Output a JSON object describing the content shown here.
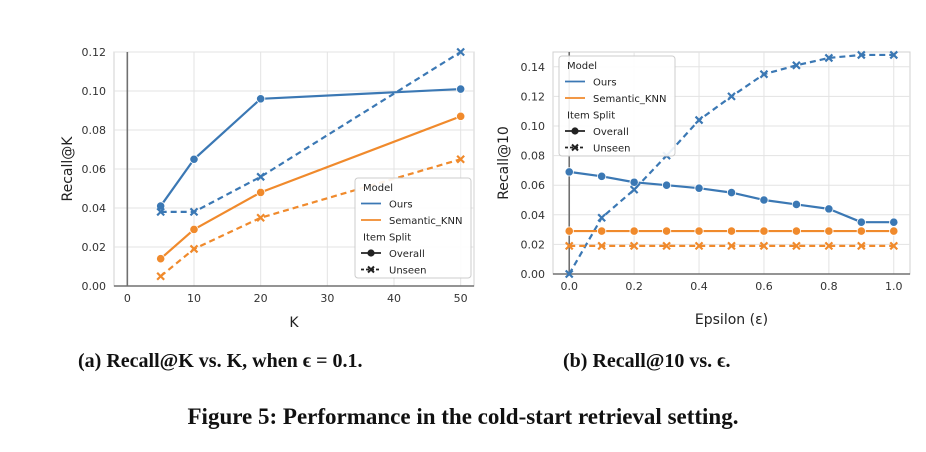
{
  "chart_data": [
    {
      "type": "line",
      "id": "a",
      "xlabel": "K",
      "ylabel": "Recall@K",
      "xlim": [
        -2,
        52
      ],
      "ylim": [
        0,
        0.12
      ],
      "xticks": [
        0,
        10,
        20,
        30,
        40,
        50
      ],
      "yticks": [
        0.0,
        0.02,
        0.04,
        0.06,
        0.08,
        0.1,
        0.12
      ],
      "ytick_labels": [
        "0.00",
        "0.02",
        "0.04",
        "0.06",
        "0.08",
        "0.10",
        "0.12"
      ],
      "xtick_labels": [
        "0",
        "10",
        "20",
        "30",
        "40",
        "50"
      ],
      "legend_position": "lower-right",
      "series": [
        {
          "name": "Ours / Overall",
          "model": "Ours",
          "split": "Overall",
          "color": "#3b78b4",
          "marker": "circle",
          "dash": false,
          "x": [
            5,
            10,
            20,
            50
          ],
          "values": [
            0.041,
            0.065,
            0.096,
            0.101
          ]
        },
        {
          "name": "Ours / Unseen",
          "model": "Ours",
          "split": "Unseen",
          "color": "#3b78b4",
          "marker": "cross",
          "dash": true,
          "x": [
            5,
            10,
            20,
            50
          ],
          "values": [
            0.038,
            0.038,
            0.056,
            0.12
          ]
        },
        {
          "name": "Semantic_KNN / Overall",
          "model": "Semantic_KNN",
          "split": "Overall",
          "color": "#f08a2c",
          "marker": "circle",
          "dash": false,
          "x": [
            5,
            10,
            20,
            50
          ],
          "values": [
            0.014,
            0.029,
            0.048,
            0.087
          ]
        },
        {
          "name": "Semantic_KNN / Unseen",
          "model": "Semantic_KNN",
          "split": "Unseen",
          "color": "#f08a2c",
          "marker": "cross",
          "dash": true,
          "x": [
            5,
            10,
            20,
            50
          ],
          "values": [
            0.005,
            0.019,
            0.035,
            0.065
          ]
        }
      ]
    },
    {
      "type": "line",
      "id": "b",
      "xlabel": "Epsilon (ε)",
      "ylabel": "Recall@10",
      "xlim": [
        -0.05,
        1.05
      ],
      "ylim": [
        0,
        0.15
      ],
      "xticks": [
        0.0,
        0.2,
        0.4,
        0.6,
        0.8,
        1.0
      ],
      "xtick_labels": [
        "0.0",
        "0.2",
        "0.4",
        "0.6",
        "0.8",
        "1.0"
      ],
      "yticks": [
        0.0,
        0.02,
        0.04,
        0.06,
        0.08,
        0.1,
        0.12,
        0.14
      ],
      "ytick_labels": [
        "0.00",
        "0.02",
        "0.04",
        "0.06",
        "0.08",
        "0.10",
        "0.12",
        "0.14"
      ],
      "legend_position": "upper-left",
      "series": [
        {
          "name": "Ours / Overall",
          "model": "Ours",
          "split": "Overall",
          "color": "#3b78b4",
          "marker": "circle",
          "dash": false,
          "x": [
            0,
            0.1,
            0.2,
            0.3,
            0.4,
            0.5,
            0.6,
            0.7,
            0.8,
            0.9,
            1.0
          ],
          "values": [
            0.069,
            0.066,
            0.062,
            0.06,
            0.058,
            0.055,
            0.05,
            0.047,
            0.044,
            0.035,
            0.035
          ]
        },
        {
          "name": "Ours / Unseen",
          "model": "Ours",
          "split": "Unseen",
          "color": "#3b78b4",
          "marker": "cross",
          "dash": true,
          "x": [
            0,
            0.1,
            0.2,
            0.3,
            0.4,
            0.5,
            0.6,
            0.7,
            0.8,
            0.9,
            1.0
          ],
          "values": [
            0.0,
            0.038,
            0.057,
            0.08,
            0.104,
            0.12,
            0.135,
            0.141,
            0.146,
            0.148,
            0.148
          ]
        },
        {
          "name": "Semantic_KNN / Overall",
          "model": "Semantic_KNN",
          "split": "Overall",
          "color": "#f08a2c",
          "marker": "circle",
          "dash": false,
          "x": [
            0,
            0.1,
            0.2,
            0.3,
            0.4,
            0.5,
            0.6,
            0.7,
            0.8,
            0.9,
            1.0
          ],
          "values": [
            0.029,
            0.029,
            0.029,
            0.029,
            0.029,
            0.029,
            0.029,
            0.029,
            0.029,
            0.029,
            0.029
          ]
        },
        {
          "name": "Semantic_KNN / Unseen",
          "model": "Semantic_KNN",
          "split": "Unseen",
          "color": "#f08a2c",
          "marker": "cross",
          "dash": true,
          "x": [
            0,
            0.1,
            0.2,
            0.3,
            0.4,
            0.5,
            0.6,
            0.7,
            0.8,
            0.9,
            1.0
          ],
          "values": [
            0.019,
            0.019,
            0.019,
            0.019,
            0.019,
            0.019,
            0.019,
            0.019,
            0.019,
            0.019,
            0.019
          ]
        }
      ]
    }
  ],
  "legend": {
    "model_title": "Model",
    "model_entries": [
      "Ours",
      "Semantic_KNN"
    ],
    "split_title": "Item Split",
    "split_entries": [
      "Overall",
      "Unseen"
    ]
  },
  "captions": {
    "a": "(a) Recall@K vs. K, when ϵ = 0.1.",
    "b": "(b) Recall@10 vs. ϵ.",
    "figure": "Figure 5: Performance in the cold-start retrieval setting."
  }
}
